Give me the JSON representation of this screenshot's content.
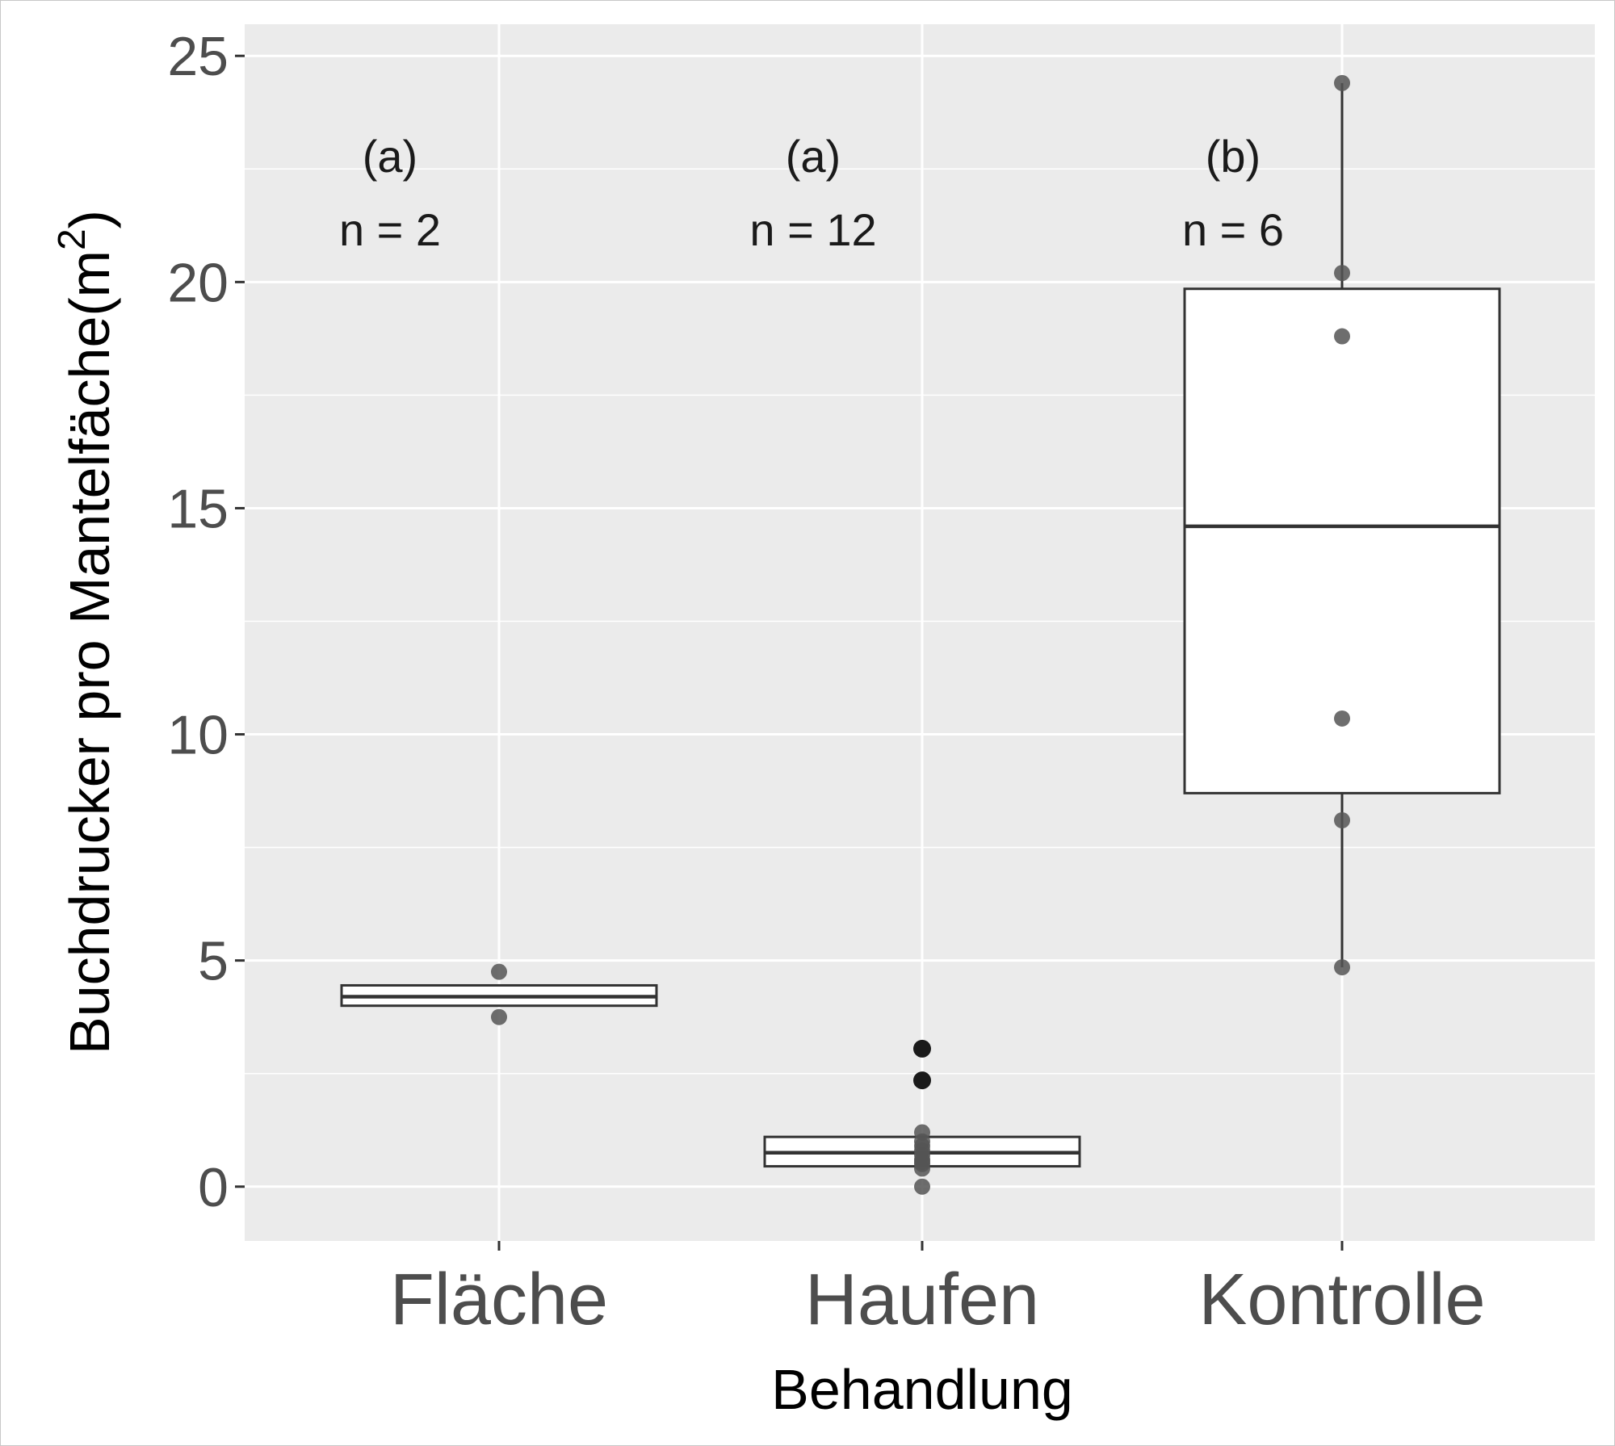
{
  "chart_data": {
    "type": "box",
    "xlabel": "Behandlung",
    "ylabel": "Buchdrucker pro Mantelfäche(m²)",
    "ylabel_main": "Buchdrucker pro Mantelfäche(m",
    "ylabel_sup": "2",
    "ylabel_close": ")",
    "categories": [
      "Fläche",
      "Haufen",
      "Kontrolle"
    ],
    "y_ticks": [
      0,
      5,
      10,
      15,
      20,
      25
    ],
    "y_tick_labels": [
      "0",
      "5",
      "10",
      "15",
      "20",
      "25"
    ],
    "ylim": [
      -1.2,
      25.7
    ],
    "grid": true,
    "background": "#ebebeb",
    "grid_color": "#ffffff",
    "box_fill": "#ffffff",
    "box_stroke": "#333333",
    "point_color": "#555555",
    "outlier_color": "#1a1a1a",
    "boxes": [
      {
        "category": "Fläche",
        "letter": "(a)",
        "n_label": "n = 2",
        "q1": 4.0,
        "median": 4.2,
        "q3": 4.45,
        "whisker_low": 4.0,
        "whisker_high": 4.45,
        "points": [
          4.75,
          3.75
        ],
        "outliers": []
      },
      {
        "category": "Haufen",
        "letter": "(a)",
        "n_label": "n = 12",
        "q1": 0.45,
        "median": 0.75,
        "q3": 1.1,
        "whisker_low": 0.45,
        "whisker_high": 1.1,
        "points": [
          0.0,
          0.4,
          0.5,
          0.6,
          0.7,
          0.8,
          0.9,
          1.0,
          1.2,
          0.55
        ],
        "outliers": [
          3.05,
          2.35
        ]
      },
      {
        "category": "Kontrolle",
        "letter": "(b)",
        "n_label": "n = 6",
        "q1": 8.7,
        "median": 14.6,
        "q3": 19.85,
        "whisker_low": 4.85,
        "whisker_high": 24.4,
        "points": [
          24.4,
          20.2,
          18.8,
          10.35,
          8.1,
          4.85
        ],
        "outliers": []
      }
    ]
  }
}
